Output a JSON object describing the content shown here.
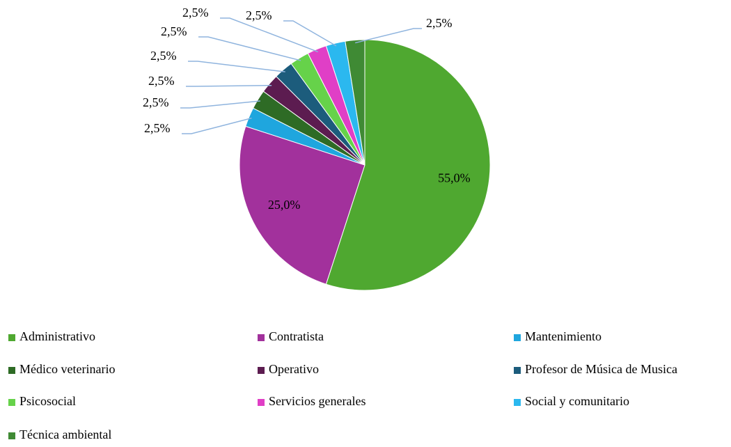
{
  "chart_data": {
    "type": "pie",
    "categories": [
      "Administrativo",
      "Contratista",
      "Mantenimiento",
      "Médico veterinario",
      "Operativo",
      "Profesor de Música de Musica",
      "Psicosocial",
      "Servicios generales",
      "Social y comunitario",
      "Técnica ambiental"
    ],
    "values": [
      55,
      25,
      2.5,
      2.5,
      2.5,
      2.5,
      2.5,
      2.5,
      2.5,
      2.5
    ],
    "value_labels": [
      "55,0%",
      "25,0%",
      "2,5%",
      "2,5%",
      "2,5%",
      "2,5%",
      "2,5%",
      "2,5%",
      "2,5%",
      "2,5%"
    ],
    "colors": [
      "#4fa830",
      "#a2319c",
      "#1fa6de",
      "#2e6b25",
      "#5c1c50",
      "#1c5c7c",
      "#66d24a",
      "#e03fc6",
      "#2bb8ef",
      "#3f8a34"
    ],
    "legend": "bottom"
  }
}
